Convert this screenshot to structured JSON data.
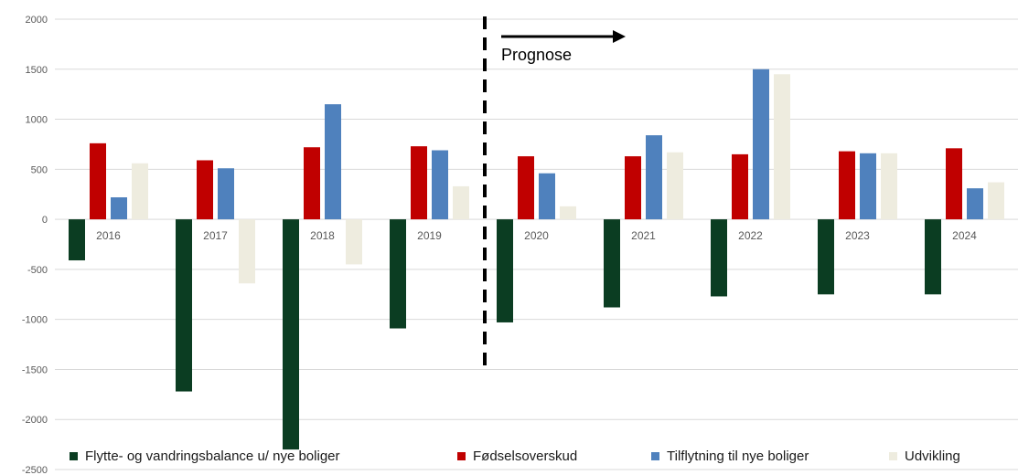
{
  "chart_data": {
    "type": "bar",
    "categories": [
      "2016",
      "2017",
      "2018",
      "2019",
      "2020",
      "2021",
      "2022",
      "2023",
      "2024"
    ],
    "series": [
      {
        "name": "Flytte- og vandringsbalance u/ nye boliger",
        "color": "#0b3d22",
        "values": [
          -410,
          -1720,
          -2300,
          -1090,
          -1030,
          -880,
          -770,
          -750,
          -750
        ]
      },
      {
        "name": "Fødselsoverskud",
        "color": "#c00000",
        "values": [
          760,
          590,
          720,
          730,
          630,
          630,
          650,
          680,
          710
        ]
      },
      {
        "name": "Tilflytning til nye boliger",
        "color": "#4f81bd",
        "values": [
          220,
          510,
          1150,
          690,
          460,
          840,
          1500,
          660,
          310
        ]
      },
      {
        "name": "Udvikling",
        "color": "#eeecdf",
        "values": [
          560,
          -640,
          -450,
          330,
          130,
          670,
          1450,
          660,
          370
        ]
      }
    ],
    "ylim": [
      -2500,
      2000
    ],
    "yticks": [
      2000,
      1500,
      1000,
      500,
      0,
      -500,
      -1000,
      -1500,
      -2000,
      -2500
    ],
    "grid": true,
    "legend_position": "bottom",
    "annotation": {
      "text": "Prognose",
      "divider_between": [
        "2019",
        "2020"
      ],
      "arrow": "right"
    }
  }
}
